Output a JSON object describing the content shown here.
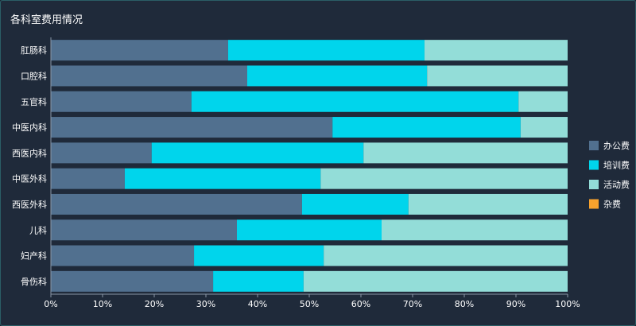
{
  "chart_data": {
    "type": "bar",
    "orientation": "horizontal",
    "stacked": true,
    "normalized": true,
    "title": "各科室费用情况",
    "categories": [
      "肛肠科",
      "口腔科",
      "五官科",
      "中医内科",
      "西医内科",
      "中医外科",
      "西医外科",
      "儿科",
      "妇产科",
      "骨伤科"
    ],
    "series": [
      {
        "name": "办公费",
        "color": "#51708f",
        "values": [
          34.3,
          38.0,
          27.2,
          54.5,
          19.5,
          14.3,
          48.6,
          36.0,
          27.7,
          31.4
        ]
      },
      {
        "name": "培训费",
        "color": "#00d5ec",
        "values": [
          38.0,
          34.8,
          63.3,
          36.4,
          41.0,
          37.9,
          20.6,
          28.0,
          25.1,
          17.5
        ]
      },
      {
        "name": "活动费",
        "color": "#93ddd8",
        "values": [
          27.7,
          27.2,
          9.5,
          9.1,
          39.5,
          47.8,
          30.8,
          36.0,
          47.2,
          51.1
        ]
      },
      {
        "name": "杂费",
        "color": "#f7a22d",
        "values": [
          0,
          0,
          0,
          0,
          0,
          0,
          0,
          0,
          0,
          0
        ]
      }
    ],
    "xlim": [
      0,
      100
    ],
    "xticks": [
      "0%",
      "10%",
      "20%",
      "30%",
      "40%",
      "50%",
      "60%",
      "70%",
      "80%",
      "90%",
      "100%"
    ],
    "grid": false,
    "legend": "right"
  }
}
